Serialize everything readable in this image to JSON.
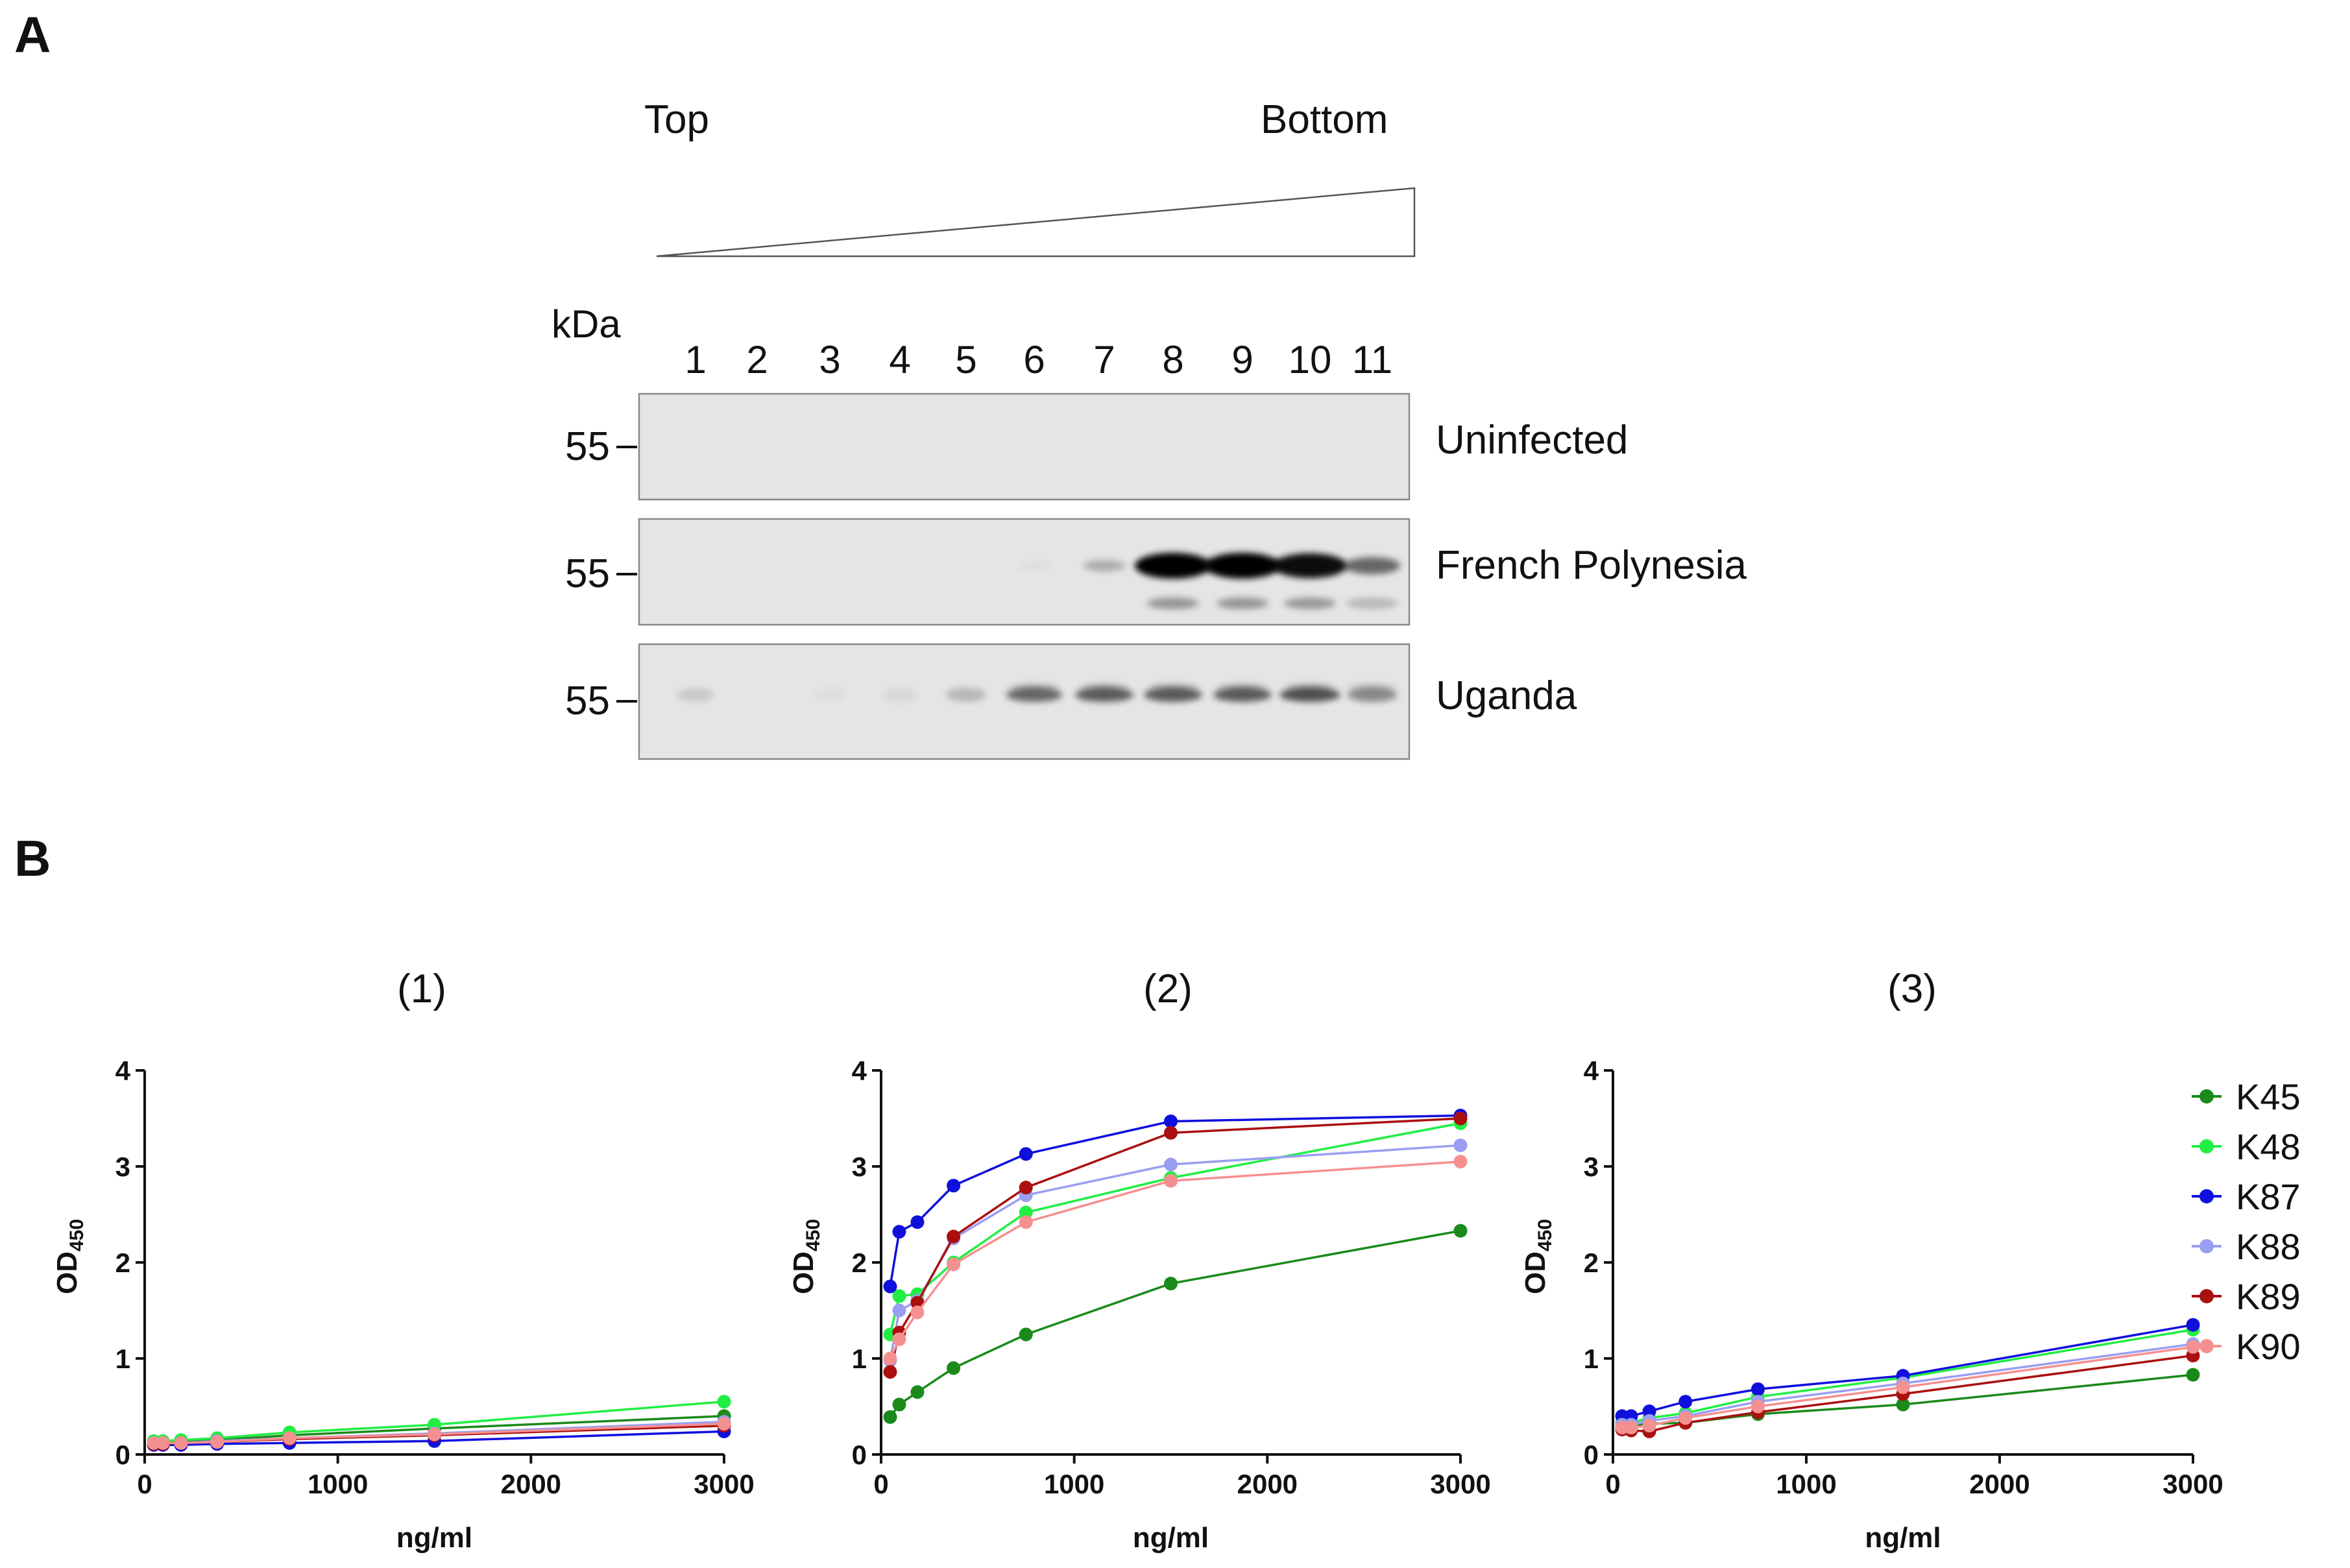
{
  "figure": {
    "panel_a_letter": "A",
    "panel_b_letter": "B"
  },
  "panel_a": {
    "gradient_top_label": "Top",
    "gradient_bottom_label": "Bottom",
    "kda_label": "kDa",
    "lanes": [
      "1",
      "2",
      "3",
      "4",
      "5",
      "6",
      "7",
      "8",
      "9",
      "10",
      "11"
    ],
    "blots": [
      {
        "name": "Uninfected",
        "marker": "55",
        "band_intensity": [
          0,
          0,
          0,
          0,
          0,
          0,
          0,
          0,
          0,
          0,
          0
        ]
      },
      {
        "name": "French Polynesia",
        "marker": "55",
        "band_intensity": [
          0,
          0,
          0,
          0,
          0,
          0.04,
          0.25,
          1.0,
          1.0,
          0.95,
          0.55
        ]
      },
      {
        "name": "Uganda",
        "marker": "55",
        "band_intensity": [
          0.12,
          0,
          0.03,
          0.06,
          0.2,
          0.55,
          0.6,
          0.6,
          0.6,
          0.65,
          0.4
        ]
      }
    ]
  },
  "chart_data": [
    {
      "type": "line",
      "title": "(1)",
      "xlabel": "ng/ml",
      "ylabel_main": "OD",
      "ylabel_sub": "450",
      "xlim": [
        0,
        3000
      ],
      "ylim": [
        0,
        4
      ],
      "x_ticks": [
        "0",
        "1000",
        "2000",
        "3000"
      ],
      "y_ticks": [
        "0",
        "1",
        "2",
        "3",
        "4"
      ],
      "x": [
        47,
        94,
        188,
        375,
        750,
        1500,
        3000
      ],
      "series": [
        {
          "name": "K45",
          "values": [
            0.13,
            0.13,
            0.13,
            0.15,
            0.2,
            0.27,
            0.4
          ]
        },
        {
          "name": "K48",
          "values": [
            0.14,
            0.14,
            0.15,
            0.17,
            0.23,
            0.31,
            0.55
          ]
        },
        {
          "name": "K87",
          "values": [
            0.1,
            0.1,
            0.1,
            0.11,
            0.12,
            0.14,
            0.24
          ]
        },
        {
          "name": "K88",
          "values": [
            0.12,
            0.12,
            0.12,
            0.14,
            0.17,
            0.22,
            0.34
          ]
        },
        {
          "name": "K89",
          "values": [
            0.11,
            0.11,
            0.12,
            0.13,
            0.16,
            0.2,
            0.3
          ]
        },
        {
          "name": "K90",
          "values": [
            0.12,
            0.12,
            0.12,
            0.13,
            0.17,
            0.21,
            0.32
          ]
        }
      ]
    },
    {
      "type": "line",
      "title": "(2)",
      "xlabel": "ng/ml",
      "ylabel_main": "OD",
      "ylabel_sub": "450",
      "xlim": [
        0,
        3000
      ],
      "ylim": [
        0,
        4
      ],
      "x_ticks": [
        "0",
        "1000",
        "2000",
        "3000"
      ],
      "y_ticks": [
        "0",
        "1",
        "2",
        "3",
        "4"
      ],
      "x": [
        47,
        94,
        188,
        375,
        750,
        1500,
        3000
      ],
      "series": [
        {
          "name": "K45",
          "values": [
            0.39,
            0.52,
            0.65,
            0.9,
            1.25,
            1.78,
            2.33
          ]
        },
        {
          "name": "K48",
          "values": [
            1.25,
            1.65,
            1.67,
            2.0,
            2.52,
            2.88,
            3.45
          ]
        },
        {
          "name": "K87",
          "values": [
            1.75,
            2.32,
            2.42,
            2.8,
            3.13,
            3.47,
            3.53
          ]
        },
        {
          "name": "K88",
          "values": [
            0.98,
            1.5,
            1.6,
            2.25,
            2.7,
            3.02,
            3.22
          ]
        },
        {
          "name": "K89",
          "values": [
            0.86,
            1.27,
            1.58,
            2.27,
            2.78,
            3.35,
            3.5
          ]
        },
        {
          "name": "K90",
          "values": [
            1.0,
            1.2,
            1.48,
            1.98,
            2.42,
            2.85,
            3.05
          ]
        }
      ]
    },
    {
      "type": "line",
      "title": "(3)",
      "xlabel": "ng/ml",
      "ylabel_main": "OD",
      "ylabel_sub": "450",
      "xlim": [
        0,
        3000
      ],
      "ylim": [
        0,
        4
      ],
      "x_ticks": [
        "0",
        "1000",
        "2000",
        "3000"
      ],
      "y_ticks": [
        "0",
        "1",
        "2",
        "3",
        "4"
      ],
      "x": [
        47,
        94,
        188,
        375,
        750,
        1500,
        3000
      ],
      "series": [
        {
          "name": "K45",
          "values": [
            0.3,
            0.3,
            0.32,
            0.33,
            0.42,
            0.52,
            0.83
          ]
        },
        {
          "name": "K48",
          "values": [
            0.33,
            0.33,
            0.38,
            0.43,
            0.6,
            0.8,
            1.3
          ]
        },
        {
          "name": "K87",
          "values": [
            0.4,
            0.4,
            0.45,
            0.55,
            0.68,
            0.82,
            1.35
          ]
        },
        {
          "name": "K88",
          "values": [
            0.31,
            0.31,
            0.35,
            0.4,
            0.55,
            0.74,
            1.15
          ]
        },
        {
          "name": "K89",
          "values": [
            0.26,
            0.25,
            0.24,
            0.33,
            0.44,
            0.63,
            1.03
          ]
        },
        {
          "name": "K90",
          "values": [
            0.28,
            0.28,
            0.3,
            0.38,
            0.5,
            0.7,
            1.12
          ]
        }
      ]
    }
  ],
  "legend": {
    "entries": [
      {
        "name": "K45",
        "color": "#1a8a1a"
      },
      {
        "name": "K48",
        "color": "#22ee44"
      },
      {
        "name": "K87",
        "color": "#1010dd"
      },
      {
        "name": "K88",
        "color": "#9a9ef2"
      },
      {
        "name": "K89",
        "color": "#aa1010"
      },
      {
        "name": "K90",
        "color": "#f59090"
      }
    ]
  }
}
